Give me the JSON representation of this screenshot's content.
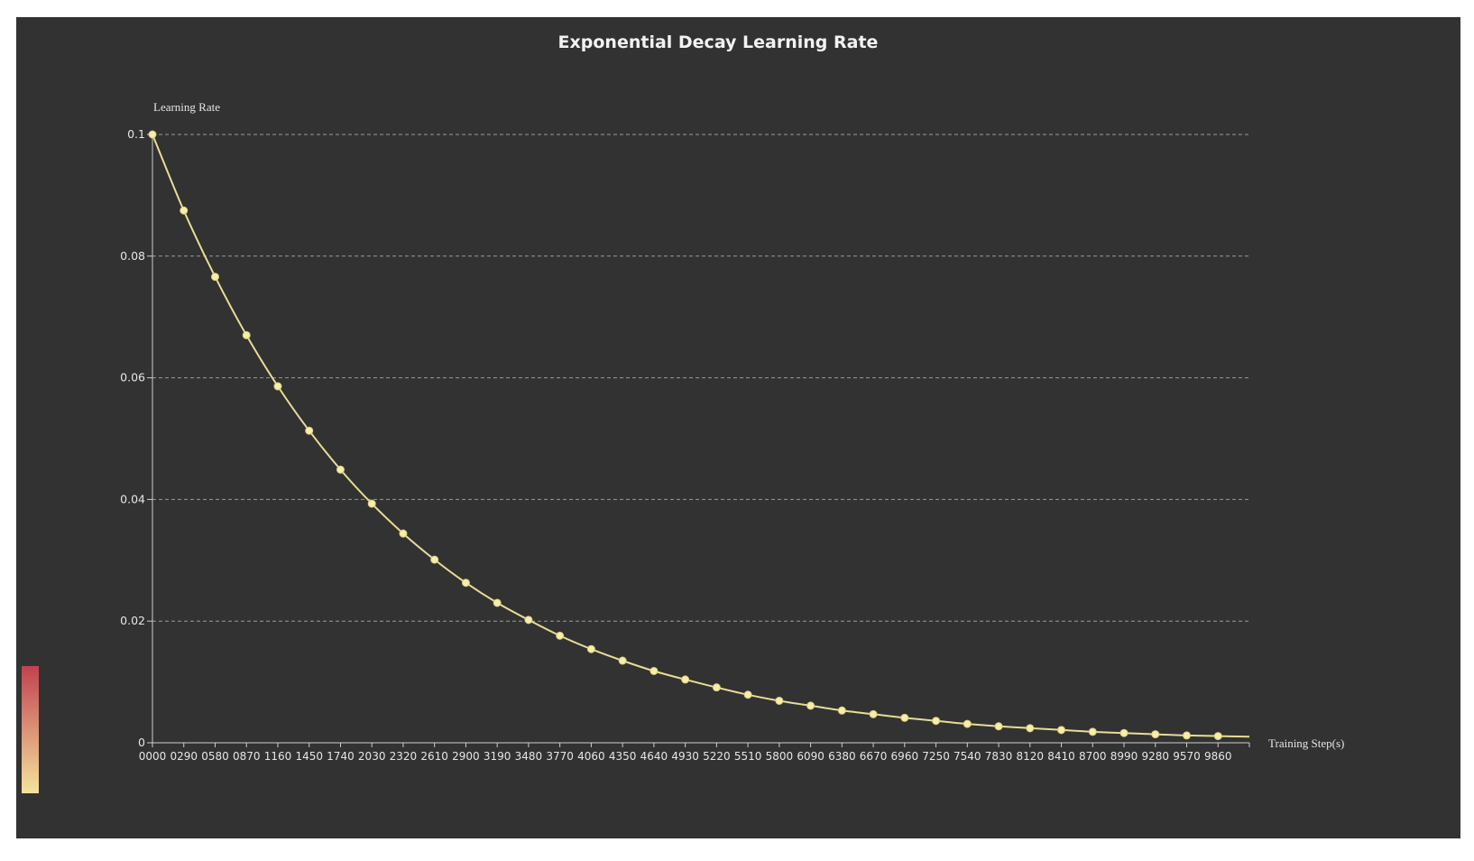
{
  "chart_data": {
    "type": "line",
    "title": "Exponential Decay Learning Rate",
    "xlabel": "Training Step(s)",
    "ylabel": "Learning Rate",
    "ylim": [
      0,
      0.1
    ],
    "yticks": [
      {
        "value": 0,
        "label": "0"
      },
      {
        "value": 0.02,
        "label": "0.02"
      },
      {
        "value": 0.04,
        "label": "0.04"
      },
      {
        "value": 0.06,
        "label": "0.06"
      },
      {
        "value": 0.08,
        "label": "0.08"
      },
      {
        "value": 0.1,
        "label": "0.1"
      }
    ],
    "grid": "horizontal dashed",
    "categories": [
      "0000",
      "0290",
      "0580",
      "0870",
      "1160",
      "1450",
      "1740",
      "2030",
      "2320",
      "2610",
      "2900",
      "3190",
      "3480",
      "3770",
      "4060",
      "4350",
      "4640",
      "4930",
      "5220",
      "5510",
      "5800",
      "6090",
      "6380",
      "6670",
      "6960",
      "7250",
      "7540",
      "7830",
      "8120",
      "8410",
      "8700",
      "8990",
      "9280",
      "9570",
      "9860"
    ],
    "series": [
      {
        "color": "#e8dc96",
        "values": [
          0.1,
          0.0875,
          0.0766,
          0.067,
          0.0586,
          0.0513,
          0.0449,
          0.0393,
          0.0344,
          0.0301,
          0.0263,
          0.023,
          0.0202,
          0.0176,
          0.0154,
          0.0135,
          0.0118,
          0.0104,
          0.0091,
          0.0079,
          0.0069,
          0.0061,
          0.0053,
          0.0047,
          0.0041,
          0.0036,
          0.0031,
          0.0027,
          0.0024,
          0.0021,
          0.0018,
          0.0016,
          0.0014,
          0.0012,
          0.0011
        ]
      }
    ],
    "visual_map": {
      "colors": [
        "#c0424f",
        "#f5e39d"
      ]
    }
  }
}
